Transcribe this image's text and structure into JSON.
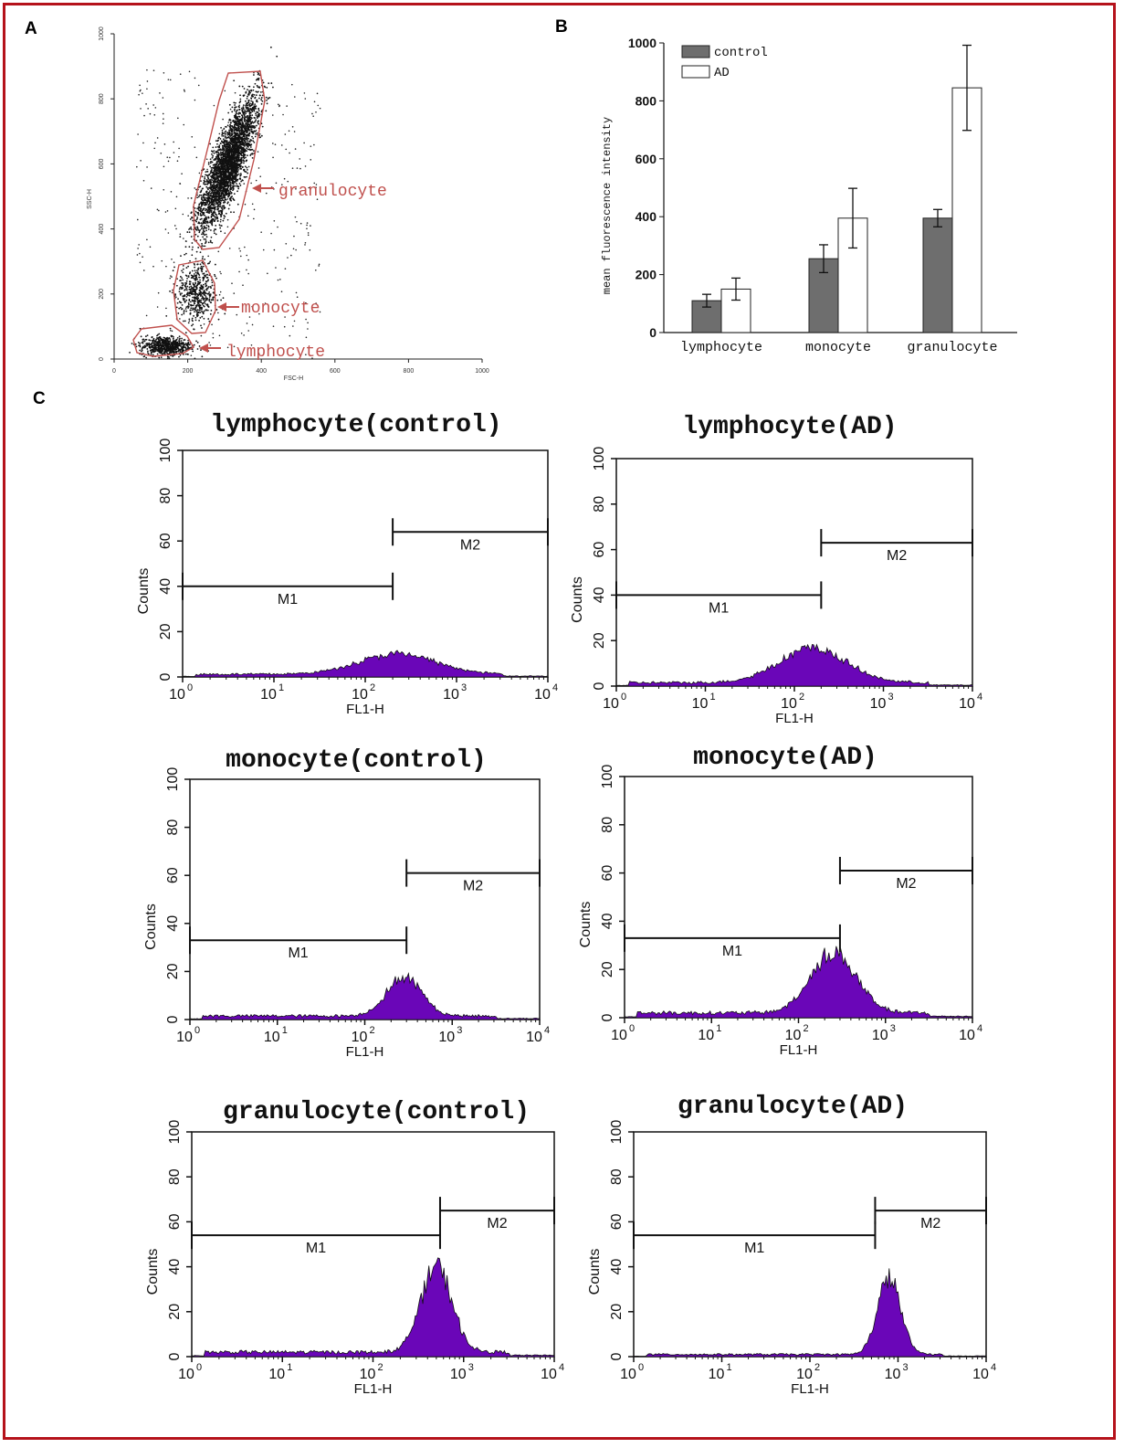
{
  "figure": {
    "border_color": "#b5121b",
    "panel_labels": [
      "A",
      "B",
      "C"
    ]
  },
  "chart_data": [
    {
      "panel": "A",
      "type": "scatter",
      "xlabel": "FSC-H",
      "ylabel": "SSC-H",
      "xlim": [
        0,
        1000
      ],
      "ylim": [
        0,
        1000
      ],
      "xticks": [
        "0",
        "200",
        "400",
        "600",
        "800",
        "1000"
      ],
      "yticks": [
        "0",
        "200",
        "400",
        "600",
        "800",
        "1000"
      ],
      "gate_color": "#c0504d",
      "populations": [
        {
          "name": "granulocyte",
          "center": [
            310,
            600
          ],
          "spread": [
            45,
            100
          ],
          "count": 3200
        },
        {
          "name": "monocyte",
          "center": [
            225,
            200
          ],
          "spread": [
            25,
            45
          ],
          "count": 500
        },
        {
          "name": "lymphocyte",
          "center": [
            140,
            40
          ],
          "spread": [
            35,
            15
          ],
          "count": 650
        }
      ],
      "annotations": [
        "granulocyte",
        "monocyte",
        "lymphocyte"
      ]
    },
    {
      "panel": "B",
      "type": "bar",
      "ylabel": "mean fluorescence intensity",
      "ylim": [
        0,
        1000
      ],
      "yticks": [
        "0",
        "200",
        "400",
        "600",
        "800",
        "1000"
      ],
      "categories": [
        "lymphocyte",
        "monocyte",
        "granulocyte"
      ],
      "legend_position": "top-left",
      "series": [
        {
          "name": "control",
          "color": "#6e6e6e",
          "values": [
            110,
            255,
            395
          ],
          "errors": [
            22,
            48,
            30
          ]
        },
        {
          "name": "AD",
          "color": "#ffffff",
          "values": [
            150,
            395,
            845
          ],
          "errors": [
            38,
            103,
            147
          ]
        }
      ]
    },
    {
      "panel": "C",
      "type": "area",
      "panels": [
        {
          "title": "lymphocyte(control)",
          "ytick_labels": [
            "0",
            "20",
            "40",
            "60",
            "80",
            "100"
          ],
          "ylim": [
            0,
            100
          ],
          "xscale": "log",
          "xlim": [
            1,
            10000
          ],
          "xlabel": "FL1-H",
          "ylabel": "Counts",
          "markers": [
            {
              "name": "M1",
              "from": 1,
              "to": 200,
              "height": 40
            },
            {
              "name": "M2",
              "from": 200,
              "to": 10000,
              "height": 64
            }
          ],
          "peak": {
            "center_log": 2.35,
            "width": 0.42,
            "height": 9
          },
          "baseline": 1.2,
          "fill": "#6a06b8"
        },
        {
          "title": "lymphocyte(AD)",
          "ytick_labels": [
            "0",
            "20",
            "40",
            "60",
            "80",
            "100"
          ],
          "ylim": [
            0,
            100
          ],
          "xscale": "log",
          "xlim": [
            1,
            10000
          ],
          "xlabel": "FL1-H",
          "ylabel": "Counts",
          "markers": [
            {
              "name": "M1",
              "from": 1,
              "to": 200,
              "height": 40
            },
            {
              "name": "M2",
              "from": 200,
              "to": 10000,
              "height": 63
            }
          ],
          "peak": {
            "center_log": 2.2,
            "width": 0.38,
            "height": 15
          },
          "baseline": 1.5,
          "fill": "#6a06b8"
        },
        {
          "title": "monocyte(control)",
          "ytick_labels": [
            "0",
            "20",
            "40",
            "60",
            "80",
            "100"
          ],
          "ylim": [
            0,
            100
          ],
          "xscale": "log",
          "xlim": [
            1,
            10000
          ],
          "xlabel": "FL1-H",
          "ylabel": "Counts",
          "markers": [
            {
              "name": "M1",
              "from": 1,
              "to": 300,
              "height": 33
            },
            {
              "name": "M2",
              "from": 300,
              "to": 10000,
              "height": 61
            }
          ],
          "peak": {
            "center_log": 2.45,
            "width": 0.2,
            "height": 16
          },
          "baseline": 1.5,
          "fill": "#6a06b8"
        },
        {
          "title": "monocyte(AD)",
          "ytick_labels": [
            "0",
            "20",
            "40",
            "60",
            "80",
            "100"
          ],
          "ylim": [
            0,
            100
          ],
          "xscale": "log",
          "xlim": [
            1,
            10000
          ],
          "xlabel": "FL1-H",
          "ylabel": "Counts",
          "markers": [
            {
              "name": "M1",
              "from": 1,
              "to": 300,
              "height": 33
            },
            {
              "name": "M2",
              "from": 300,
              "to": 10000,
              "height": 61
            }
          ],
          "peak": {
            "center_log": 2.4,
            "width": 0.26,
            "height": 25
          },
          "baseline": 2,
          "fill": "#6a06b8"
        },
        {
          "title": "granulocyte(control)",
          "ytick_labels": [
            "0",
            "20",
            "40",
            "60",
            "80",
            "100"
          ],
          "ylim": [
            0,
            100
          ],
          "xscale": "log",
          "xlim": [
            1,
            10000
          ],
          "xlabel": "FL1-H",
          "ylabel": "Counts",
          "markers": [
            {
              "name": "M1",
              "from": 1,
              "to": 550,
              "height": 54
            },
            {
              "name": "M2",
              "from": 550,
              "to": 10000,
              "height": 65
            }
          ],
          "peak": {
            "center_log": 2.7,
            "width": 0.17,
            "height": 38
          },
          "baseline": 2,
          "fill": "#6a06b8"
        },
        {
          "title": "granulocyte(AD)",
          "ytick_labels": [
            "0",
            "20",
            "40",
            "60",
            "80",
            "100"
          ],
          "ylim": [
            0,
            100
          ],
          "xscale": "log",
          "xlim": [
            1,
            10000
          ],
          "xlabel": "FL1-H",
          "ylabel": "Counts",
          "markers": [
            {
              "name": "M1",
              "from": 1,
              "to": 550,
              "height": 54
            },
            {
              "name": "M2",
              "from": 550,
              "to": 10000,
              "height": 65
            }
          ],
          "peak": {
            "center_log": 2.9,
            "width": 0.13,
            "height": 34
          },
          "baseline": 1,
          "fill": "#6a06b8"
        }
      ]
    }
  ]
}
